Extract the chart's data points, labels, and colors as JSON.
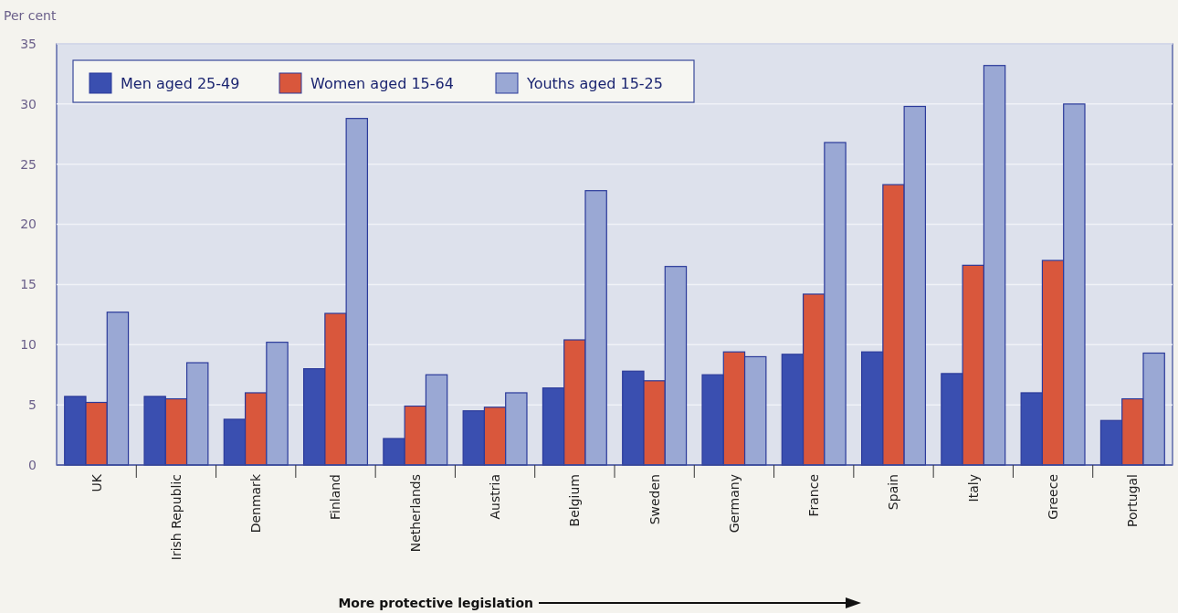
{
  "chart_data": {
    "type": "bar",
    "ylabel": "Per cent",
    "categories": [
      "UK",
      "Irish Republic",
      "Denmark",
      "Finland",
      "Netherlands",
      "Austria",
      "Belgium",
      "Sweden",
      "Germany",
      "France",
      "Spain",
      "Italy",
      "Greece",
      "Portugal"
    ],
    "series": [
      {
        "name": "Men aged 25-49",
        "color": "#3a4fb0",
        "values": [
          5.7,
          5.7,
          3.8,
          8.0,
          2.2,
          4.5,
          6.4,
          7.8,
          7.5,
          9.2,
          9.4,
          7.6,
          6.0,
          3.7
        ]
      },
      {
        "name": "Women aged 15-64",
        "color": "#d9573c",
        "values": [
          5.2,
          5.5,
          6.0,
          12.6,
          4.9,
          4.8,
          10.4,
          7.0,
          9.4,
          14.2,
          23.3,
          16.6,
          17.0,
          5.5
        ]
      },
      {
        "name": "Youths aged 15-25",
        "color": "#9aa8d4",
        "values": [
          12.7,
          8.5,
          10.2,
          28.8,
          7.5,
          6.0,
          22.8,
          16.5,
          9.0,
          26.8,
          29.8,
          33.2,
          30.0,
          9.3
        ]
      }
    ],
    "ylim": [
      0,
      35
    ],
    "yticks": [
      0,
      5,
      10,
      15,
      20,
      25,
      30,
      35
    ],
    "grid": "y",
    "legend": "top left",
    "annotations": [
      "More protective legislation"
    ]
  }
}
